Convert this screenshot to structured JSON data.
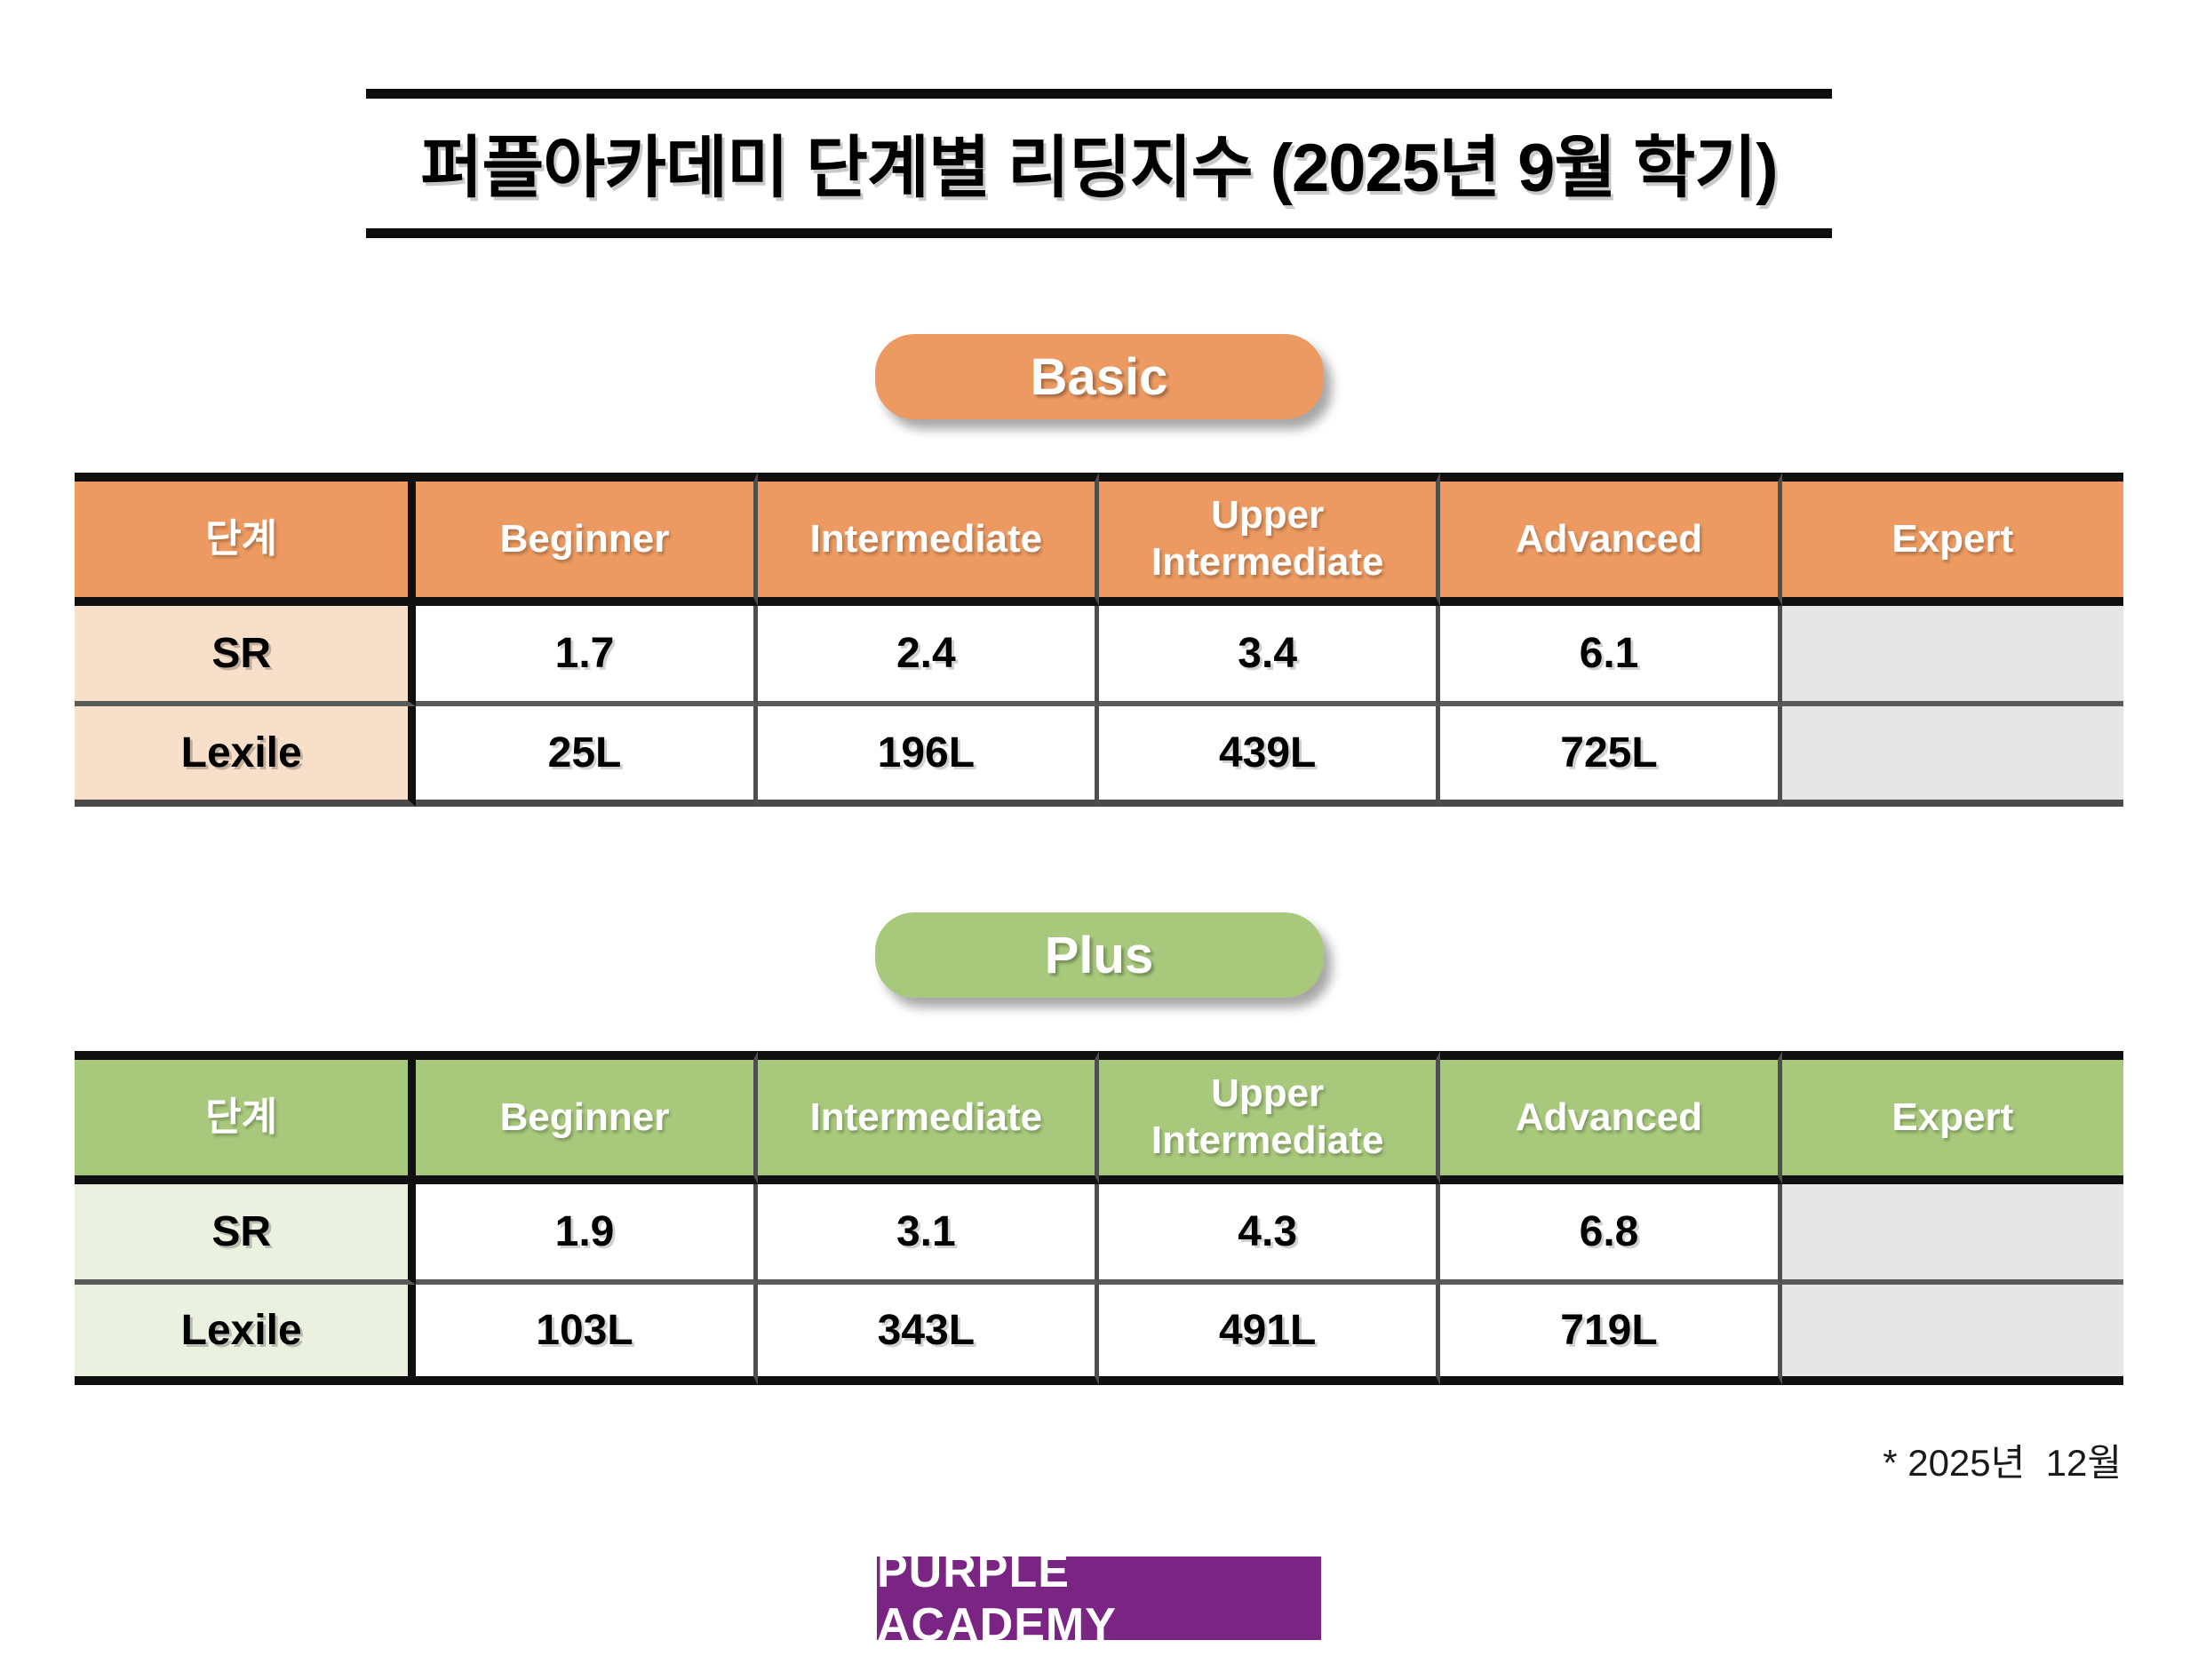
{
  "title": "퍼플아카데미 단계별 리딩지수 (2025년 9월 학기)",
  "tables": [
    {
      "badge": "Basic",
      "columns": [
        "단계",
        "Beginner",
        "Intermediate",
        "Upper Intermediate",
        "Advanced",
        "Expert"
      ],
      "rows": [
        {
          "label": "SR",
          "values": [
            "1.7",
            "2.4",
            "3.4",
            "6.1",
            ""
          ]
        },
        {
          "label": "Lexile",
          "values": [
            "25L",
            "196L",
            "439L",
            "725L",
            ""
          ]
        }
      ]
    },
    {
      "badge": "Plus",
      "columns": [
        "단계",
        "Beginner",
        "Intermediate",
        "Upper Intermediate",
        "Advanced",
        "Expert"
      ],
      "rows": [
        {
          "label": "SR",
          "values": [
            "1.9",
            "3.1",
            "4.3",
            "6.8",
            ""
          ]
        },
        {
          "label": "Lexile",
          "values": [
            "103L",
            "343L",
            "491L",
            "719L",
            ""
          ]
        }
      ]
    }
  ],
  "footnote": "* 2025년  12월",
  "logo": {
    "text": "PURPLE ACADEMY"
  },
  "colors": {
    "basic_accent": "#ec9a61",
    "basic_label_bg": "#f8dfc9",
    "plus_accent": "#a8c97c",
    "plus_label_bg": "#eaf1df",
    "empty_cell": "#e6e6e6",
    "logo_bg": "#7a2483"
  }
}
